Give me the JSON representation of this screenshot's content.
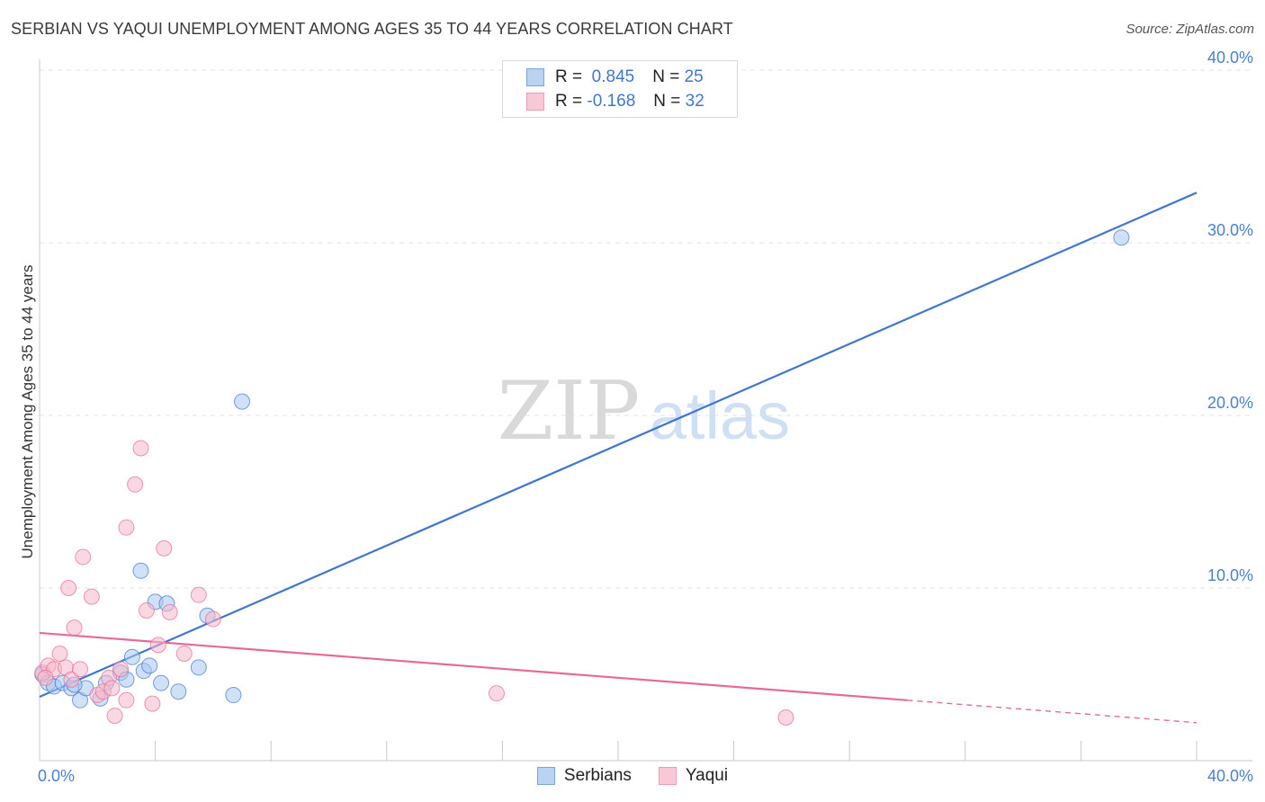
{
  "title": "SERBIAN VS YAQUI UNEMPLOYMENT AMONG AGES 35 TO 44 YEARS CORRELATION CHART",
  "source": "Source: ZipAtlas.com",
  "watermark": {
    "zip": "ZIP",
    "atlas": "atlas"
  },
  "legend": {
    "serbians": {
      "r_label": "R =",
      "r_value": "0.845",
      "n_label": "N =",
      "n_value": "25"
    },
    "yaqui": {
      "r_label": "R =",
      "r_value": "-0.168",
      "n_label": "N =",
      "n_value": "32"
    }
  },
  "bottom_legend": {
    "serbians": "Serbians",
    "yaqui": "Yaqui"
  },
  "colors": {
    "serbians": "#3f76cf",
    "yaqui": "#e56b96",
    "serbians_fill": "#a9c8f0",
    "yaqui_fill": "#f5b8cb"
  },
  "chart_data": {
    "type": "scatter",
    "title": "SERBIAN VS YAQUI UNEMPLOYMENT AMONG AGES 35 TO 44 YEARS CORRELATION CHART",
    "xlabel": "",
    "ylabel": "Unemployment Among Ages 35 to 44 years",
    "xlim": [
      0,
      40
    ],
    "ylim": [
      0,
      40
    ],
    "x_tick_labels": [
      "0.0%",
      "40.0%"
    ],
    "y_tick_labels": [
      "10.0%",
      "20.0%",
      "30.0%",
      "40.0%"
    ],
    "y_tick_values": [
      10,
      20,
      30,
      40
    ],
    "series": [
      {
        "name": "Serbians",
        "x": [
          0.1,
          0.3,
          0.5,
          0.8,
          1.1,
          1.4,
          1.6,
          2.1,
          2.3,
          2.8,
          3.0,
          3.2,
          3.5,
          3.6,
          3.8,
          4.0,
          4.2,
          4.4,
          4.8,
          5.5,
          5.8,
          6.7,
          7.0,
          37.4,
          1.2
        ],
        "y": [
          5.0,
          4.5,
          4.3,
          4.5,
          4.2,
          3.5,
          4.2,
          3.6,
          4.5,
          5.1,
          4.7,
          6.0,
          11.0,
          5.2,
          5.5,
          9.2,
          4.5,
          9.1,
          4.0,
          5.4,
          8.4,
          3.8,
          20.8,
          30.3,
          4.4
        ],
        "trend": {
          "x": [
            0,
            40
          ],
          "y": [
            3.7,
            32.9
          ]
        }
      },
      {
        "name": "Yaqui",
        "x": [
          0.1,
          0.3,
          0.5,
          0.7,
          0.9,
          1.0,
          1.2,
          1.5,
          1.8,
          2.0,
          2.2,
          2.4,
          2.6,
          2.8,
          3.0,
          3.3,
          3.5,
          3.7,
          3.9,
          4.1,
          4.3,
          4.5,
          5.0,
          5.5,
          6.0,
          15.8,
          25.8,
          1.1,
          2.5,
          3.0,
          0.2,
          1.4
        ],
        "y": [
          5.1,
          5.5,
          5.3,
          6.2,
          5.4,
          10.0,
          7.7,
          11.8,
          9.5,
          3.8,
          4.0,
          4.8,
          2.6,
          5.3,
          13.5,
          16.0,
          18.1,
          8.7,
          3.3,
          6.7,
          12.3,
          8.6,
          6.2,
          9.6,
          8.2,
          3.9,
          2.5,
          4.7,
          4.2,
          3.5,
          4.8,
          5.3
        ],
        "trend": {
          "x": [
            0,
            40
          ],
          "y": [
            7.4,
            2.2
          ],
          "solid_until_x": 30
        }
      }
    ]
  }
}
